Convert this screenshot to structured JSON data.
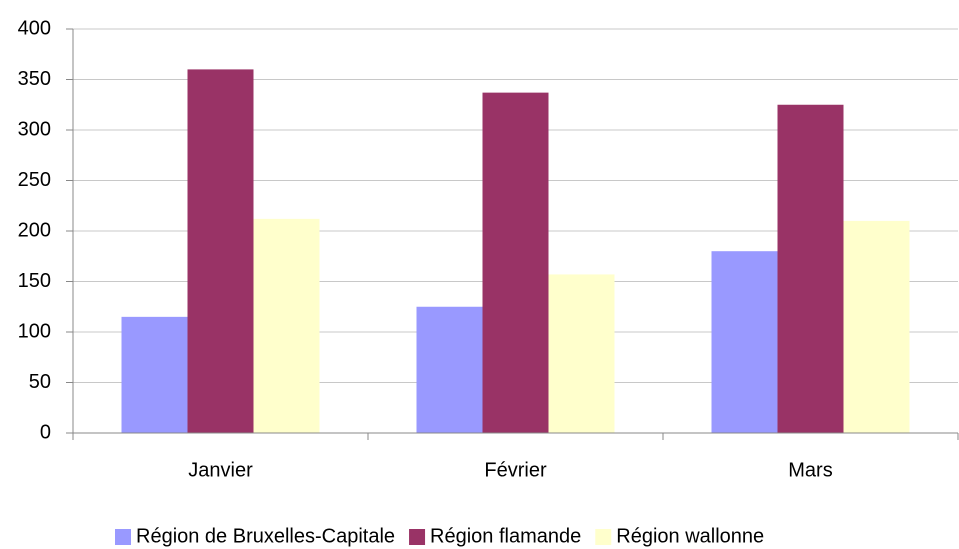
{
  "chart_data": {
    "type": "bar",
    "categories": [
      "Janvier",
      "Février",
      "Mars"
    ],
    "series": [
      {
        "name": "Région de Bruxelles-Capitale",
        "color": "#9999ff",
        "values": [
          115,
          125,
          180
        ]
      },
      {
        "name": "Région flamande",
        "color": "#993366",
        "values": [
          360,
          337,
          325
        ]
      },
      {
        "name": "Région wallonne",
        "color": "#ffffcc",
        "values": [
          212,
          157,
          210
        ]
      }
    ],
    "ylim": [
      0,
      400
    ],
    "yticks": [
      0,
      50,
      100,
      150,
      200,
      250,
      300,
      350,
      400
    ],
    "grid": true,
    "legend": "bottom"
  }
}
